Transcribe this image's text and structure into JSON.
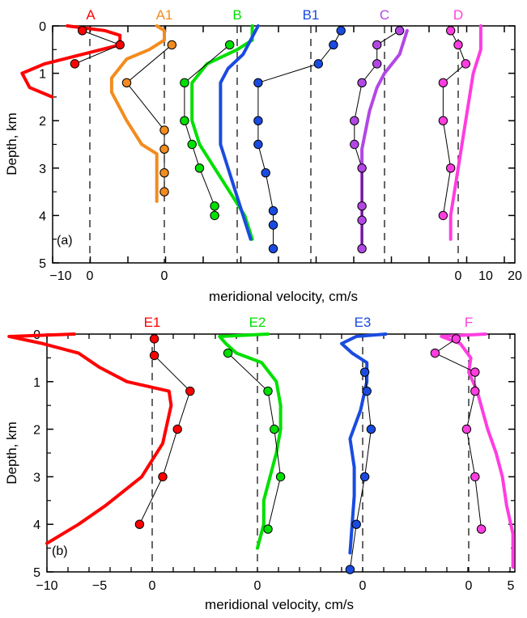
{
  "chart_data": [
    {
      "panel_label": "(a)",
      "type": "line",
      "xlabel": "meridional velocity, cm/s",
      "ylabel": "Depth, km",
      "xticks": [
        "−10",
        "0",
        "0",
        "0",
        "0",
        "0",
        "0",
        "10",
        "20"
      ],
      "yticks": [
        "0",
        "1",
        "2",
        "3",
        "4",
        "5"
      ],
      "ylim": [
        0,
        5
      ],
      "zero_lines_note": "each profile offset, dashed zero line per station",
      "series": [
        {
          "name": "A",
          "color": "#ff0000",
          "zero_pixel_ref": 0,
          "line": [
            [
              -3,
              0
            ],
            [
              2,
              0.1
            ],
            [
              4,
              0.2
            ],
            [
              4,
              0.4
            ],
            [
              -1,
              0.6
            ],
            [
              -6,
              0.8
            ],
            [
              -9,
              1.0
            ],
            [
              -8,
              1.3
            ],
            [
              -5,
              1.5
            ]
          ],
          "points": [
            [
              -1,
              0.1
            ],
            [
              4,
              0.4
            ],
            [
              -2,
              0.8
            ]
          ]
        },
        {
          "name": "A1",
          "color": "#f28c1e",
          "line": [
            [
              -1,
              0
            ],
            [
              0,
              0.1
            ],
            [
              0,
              0.3
            ],
            [
              -2,
              0.5
            ],
            [
              -5,
              0.7
            ],
            [
              -6,
              0.9
            ],
            [
              -7,
              1.1
            ],
            [
              -7,
              1.4
            ],
            [
              -5,
              2.0
            ],
            [
              -3,
              2.5
            ],
            [
              -1,
              2.7
            ],
            [
              -1,
              3.7
            ]
          ],
          "points": [
            [
              1,
              0.4
            ],
            [
              -5,
              1.2
            ],
            [
              0,
              2.2
            ],
            [
              0,
              2.6
            ],
            [
              0,
              3.1
            ],
            [
              0,
              3.5
            ]
          ]
        },
        {
          "name": "B",
          "color": "#00e000",
          "line": [
            [
              2,
              0
            ],
            [
              2,
              0.3
            ],
            [
              0,
              0.5
            ],
            [
              -4,
              0.8
            ],
            [
              -6,
              1.2
            ],
            [
              -6,
              2.0
            ],
            [
              -5,
              2.5
            ],
            [
              -3,
              3.0
            ],
            [
              -1,
              3.5
            ],
            [
              1,
              4.0
            ],
            [
              2,
              4.5
            ]
          ],
          "points": [
            [
              -1,
              0.4
            ],
            [
              -7,
              1.2
            ],
            [
              -7,
              2.0
            ],
            [
              -6,
              2.5
            ],
            [
              -5,
              3.0
            ],
            [
              -3,
              3.8
            ],
            [
              -3,
              4.0
            ]
          ]
        },
        {
          "name": "B1",
          "color": "#1a4be0",
          "line": [
            [
              -7,
              0
            ],
            [
              -8,
              0.3
            ],
            [
              -9,
              0.6
            ],
            [
              -11,
              0.9
            ],
            [
              -12,
              1.2
            ],
            [
              -12,
              2.0
            ],
            [
              -12,
              2.5
            ],
            [
              -11,
              3.0
            ],
            [
              -10,
              3.5
            ],
            [
              -9,
              4.0
            ],
            [
              -8,
              4.5
            ]
          ],
          "points": [
            [
              4,
              0.1
            ],
            [
              3,
              0.4
            ],
            [
              1,
              0.8
            ],
            [
              -7,
              1.2
            ],
            [
              -7,
              2.0
            ],
            [
              -7,
              2.5
            ],
            [
              -6,
              3.1
            ],
            [
              -5,
              3.9
            ],
            [
              -5,
              4.2
            ],
            [
              -5,
              4.7
            ]
          ]
        },
        {
          "name": "C",
          "color": "#b347e6",
          "line": [
            [
              3,
              0.1
            ],
            [
              2,
              0.6
            ],
            [
              0,
              1.0
            ],
            [
              -1,
              1.3
            ],
            [
              -2,
              1.8
            ],
            [
              -3,
              2.6
            ],
            [
              -3,
              4.0
            ],
            [
              -3,
              4.6
            ]
          ],
          "points": [
            [
              2,
              0.1
            ],
            [
              -1,
              0.4
            ],
            [
              -1,
              0.8
            ],
            [
              -3,
              1.2
            ],
            [
              -4,
              2.0
            ],
            [
              -4,
              2.5
            ],
            [
              -3,
              3.0
            ],
            [
              -3,
              3.8
            ],
            [
              -3,
              4.1
            ],
            [
              -3,
              4.7
            ]
          ]
        },
        {
          "name": "D",
          "color": "#ff3de0",
          "line": [
            [
              3,
              0
            ],
            [
              3,
              0.5
            ],
            [
              2,
              1.0
            ],
            [
              1,
              2.0
            ],
            [
              0,
              3.0
            ],
            [
              -1,
              4.0
            ],
            [
              -1,
              4.5
            ]
          ],
          "points": [
            [
              -1,
              0.1
            ],
            [
              0,
              0.4
            ],
            [
              1,
              0.8
            ],
            [
              -2,
              1.2
            ],
            [
              -2,
              2.0
            ],
            [
              -1,
              3.0
            ],
            [
              -2,
              4.0
            ]
          ]
        }
      ]
    },
    {
      "panel_label": "(b)",
      "type": "line",
      "xlabel": "meridional velocity, cm/s",
      "ylabel": "Depth, km",
      "xticks": [
        "−10",
        "−5",
        "0",
        "0",
        "0",
        "0",
        "5"
      ],
      "yticks": [
        "0",
        "1",
        "2",
        "3",
        "4",
        "5"
      ],
      "ylim": [
        0,
        5
      ],
      "series": [
        {
          "name": "E1",
          "color": "#ff0000"
        },
        {
          "name": "E2",
          "color": "#00e000"
        },
        {
          "name": "E3",
          "color": "#1a4be0"
        },
        {
          "name": "F",
          "color": "#ff3de0"
        }
      ]
    }
  ]
}
